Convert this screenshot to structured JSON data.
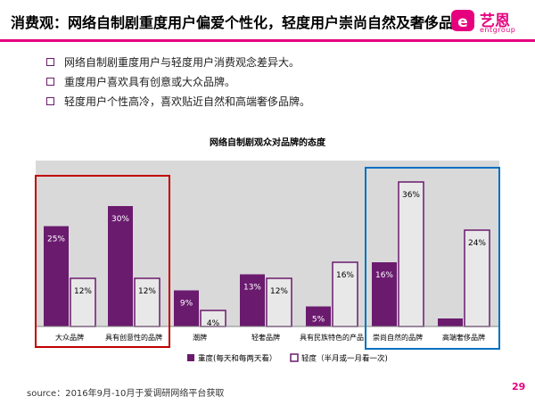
{
  "header": {
    "title": "消费观：网络自制剧重度用户偏爱个性化，轻度用户崇尚自然及奢侈品",
    "logo_text": "艺恩",
    "logo_sub": "entgroup"
  },
  "bullets": [
    "网络自制剧重度用户与轻度用户消费观念差异大。",
    "重度用户喜欢具有创意或大众品牌。",
    "轻度用户个性高冷，喜欢贴近自然和高端奢侈品牌。"
  ],
  "colors": {
    "accent": "#e6007e",
    "heavy": "#6a1b6e",
    "light_fill": "#e8e8e8",
    "plot_bg": "#d9d9d9",
    "highlight_red": "#c00000",
    "highlight_blue": "#0070c0"
  },
  "chart_data": {
    "type": "bar",
    "title": "网络自制剧观众对品牌的态度",
    "categories": [
      "大众品牌",
      "具有创意性的品牌",
      "潮牌",
      "轻奢品牌",
      "具有民族特色的产品",
      "崇尚自然的品牌",
      "高端奢侈品牌"
    ],
    "series": [
      {
        "name": "重度(每天和每两天看）",
        "values": [
          25,
          30,
          9,
          13,
          5,
          16,
          2
        ]
      },
      {
        "name": "轻度（半月或一月看一次)",
        "values": [
          12,
          12,
          4,
          12,
          16,
          36,
          24
        ]
      }
    ],
    "ylim": [
      0,
      40
    ],
    "value_suffix": "%",
    "grid": false,
    "legend_position": "bottom"
  },
  "footer": {
    "source": "source：2016年9月-10月于爱调研网络平台获取",
    "page": "29"
  }
}
